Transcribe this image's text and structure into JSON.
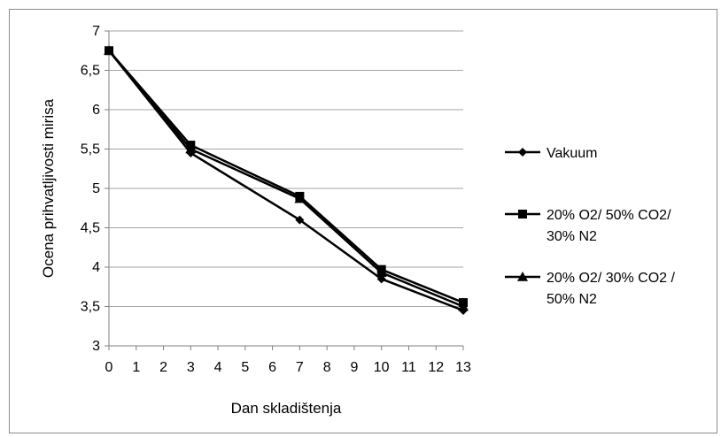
{
  "chart_data": {
    "type": "line",
    "xlabel": "Dan skladištenja",
    "ylabel": "Ocena prihvatljivosti mirisa",
    "x_ticks": [
      "0",
      "1",
      "2",
      "3",
      "4",
      "5",
      "6",
      "7",
      "8",
      "9",
      "10",
      "11",
      "12",
      "13"
    ],
    "y_ticks": [
      "3",
      "3,5",
      "4",
      "4,5",
      "5",
      "5,5",
      "6",
      "6,5",
      "7"
    ],
    "xlim": [
      0,
      13
    ],
    "ylim": [
      3,
      7
    ],
    "grid": "horizontal",
    "legend_position": "right",
    "series": [
      {
        "name": "Vakuum",
        "marker": "diamond",
        "x": [
          0,
          3,
          7,
          10,
          13
        ],
        "y": [
          6.75,
          5.45,
          4.6,
          3.85,
          3.45
        ],
        "legend_lines": [
          "Vakuum"
        ]
      },
      {
        "name": "20% O2/ 50% CO2/ 30% N2",
        "marker": "square",
        "x": [
          0,
          3,
          7,
          10,
          13
        ],
        "y": [
          6.75,
          5.55,
          4.9,
          3.97,
          3.55
        ],
        "legend_lines": [
          "20% O2/ 50% CO2/",
          "30% N2"
        ]
      },
      {
        "name": "20% O2/ 30% CO2 / 50% N2",
        "marker": "triangle",
        "x": [
          0,
          3,
          7,
          10,
          13
        ],
        "y": [
          6.75,
          5.5,
          4.87,
          3.93,
          3.5
        ],
        "legend_lines": [
          "20% O2/ 30% CO2 /",
          "50% N2"
        ]
      }
    ],
    "colors": {
      "line": "#000000",
      "grid": "#a6a6a6",
      "axis": "#808080"
    }
  }
}
